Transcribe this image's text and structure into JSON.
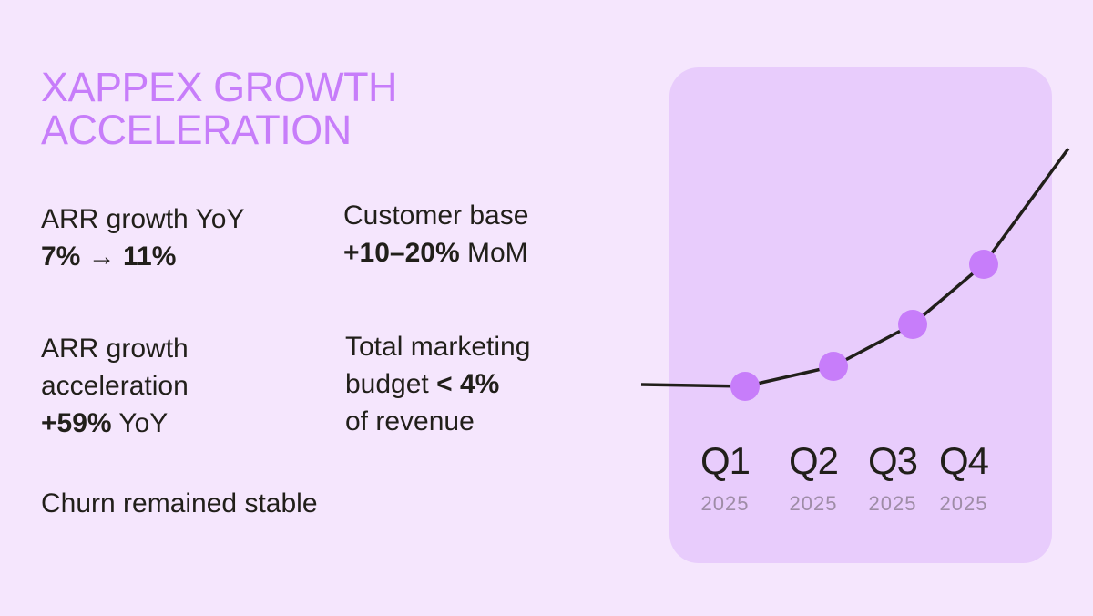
{
  "title": {
    "line1": "XAPPEX GROWTH",
    "line2": "ACCELERATION"
  },
  "stats": [
    {
      "label": "ARR growth YoY",
      "value": "7% → 11%"
    },
    {
      "label": "Customer base",
      "value": "+10–20%",
      "suffix": " MoM"
    },
    {
      "label_line1": "ARR growth",
      "label_line2": "acceleration",
      "value": "+59%",
      "suffix": " YoY"
    },
    {
      "label_line1": "Total marketing",
      "label_line2": "budget ",
      "value": "< 4%",
      "label_line3": "of revenue"
    },
    {
      "label": "Churn remained stable"
    }
  ],
  "colors": {
    "background": "#f5e6fd",
    "card": "#e8ccfc",
    "accent": "#c77dfa",
    "text": "#211f1a",
    "year": "#9e8ca6"
  },
  "chart_data": {
    "type": "line",
    "categories": [
      "Q1",
      "Q2",
      "Q3",
      "Q4"
    ],
    "sublabels": [
      "2025",
      "2025",
      "2025",
      "2025"
    ],
    "values": [
      0,
      22,
      68,
      134
    ],
    "trend_note_visible": false,
    "axes_visible": false,
    "grid": false
  }
}
